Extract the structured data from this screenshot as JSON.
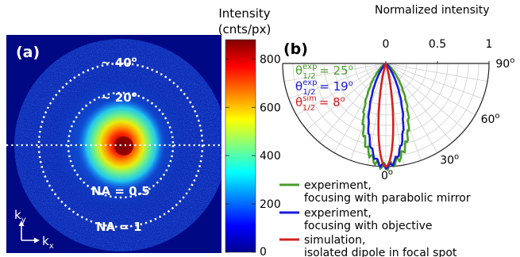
{
  "chart_data": [
    {
      "type": "heatmap",
      "panel_label": "(a)",
      "colorbar": {
        "title_line1": "Intensity",
        "title_line2": "(cnts/px)",
        "ticks": [
          "0",
          "200",
          "400",
          "600",
          "800"
        ],
        "tick_values": [
          0,
          200,
          400,
          600,
          800
        ],
        "range": [
          0,
          880
        ],
        "colormap": "jet"
      },
      "circle_labels": {
        "outer_angle": "~ 40",
        "inner_angle": "~ 20",
        "degree_symbol": "o",
        "na_inner": "NA = 0.5",
        "na_outer": "NA = 1"
      },
      "axes": {
        "ky": "k",
        "ky_sub": "y",
        "kx": "k",
        "kx_sub": "x"
      }
    },
    {
      "type": "polar",
      "panel_label": "(b)",
      "title": "Normalized  intensity",
      "radial_ticks": [
        "0",
        "0.5",
        "1"
      ],
      "radial_values": [
        0,
        0.5,
        1
      ],
      "angle_ticks": [
        "30",
        "60",
        "90"
      ],
      "angle_values": [
        30,
        60,
        90
      ],
      "zero_label": "0",
      "degree_symbol": "o",
      "theta_labels": [
        {
          "base": "θ",
          "sup": "exp",
          "sub": "1/2",
          "value": " = 25",
          "color": "#4a9e2c"
        },
        {
          "base": "θ",
          "sup": "exp",
          "sub": "1/2",
          "value": " = 19",
          "color": "#1a1ad6"
        },
        {
          "base": "θ",
          "sup": "sim",
          "sub": "1/2",
          "value": " = 8",
          "color": "#d42020"
        }
      ],
      "series": [
        {
          "color": "#4a9e2c",
          "half_width_deg": 25,
          "legend_line1": "experiment,",
          "legend_line2": "focusing with parabolic mirror"
        },
        {
          "color": "#1a1ad6",
          "half_width_deg": 19,
          "legend_line1": "experiment,",
          "legend_line2": "focusing with objective"
        },
        {
          "color": "#d42020",
          "half_width_deg": 8,
          "legend_line1": "simulation,",
          "legend_line2": "isolated dipole in focal spot"
        }
      ]
    }
  ]
}
